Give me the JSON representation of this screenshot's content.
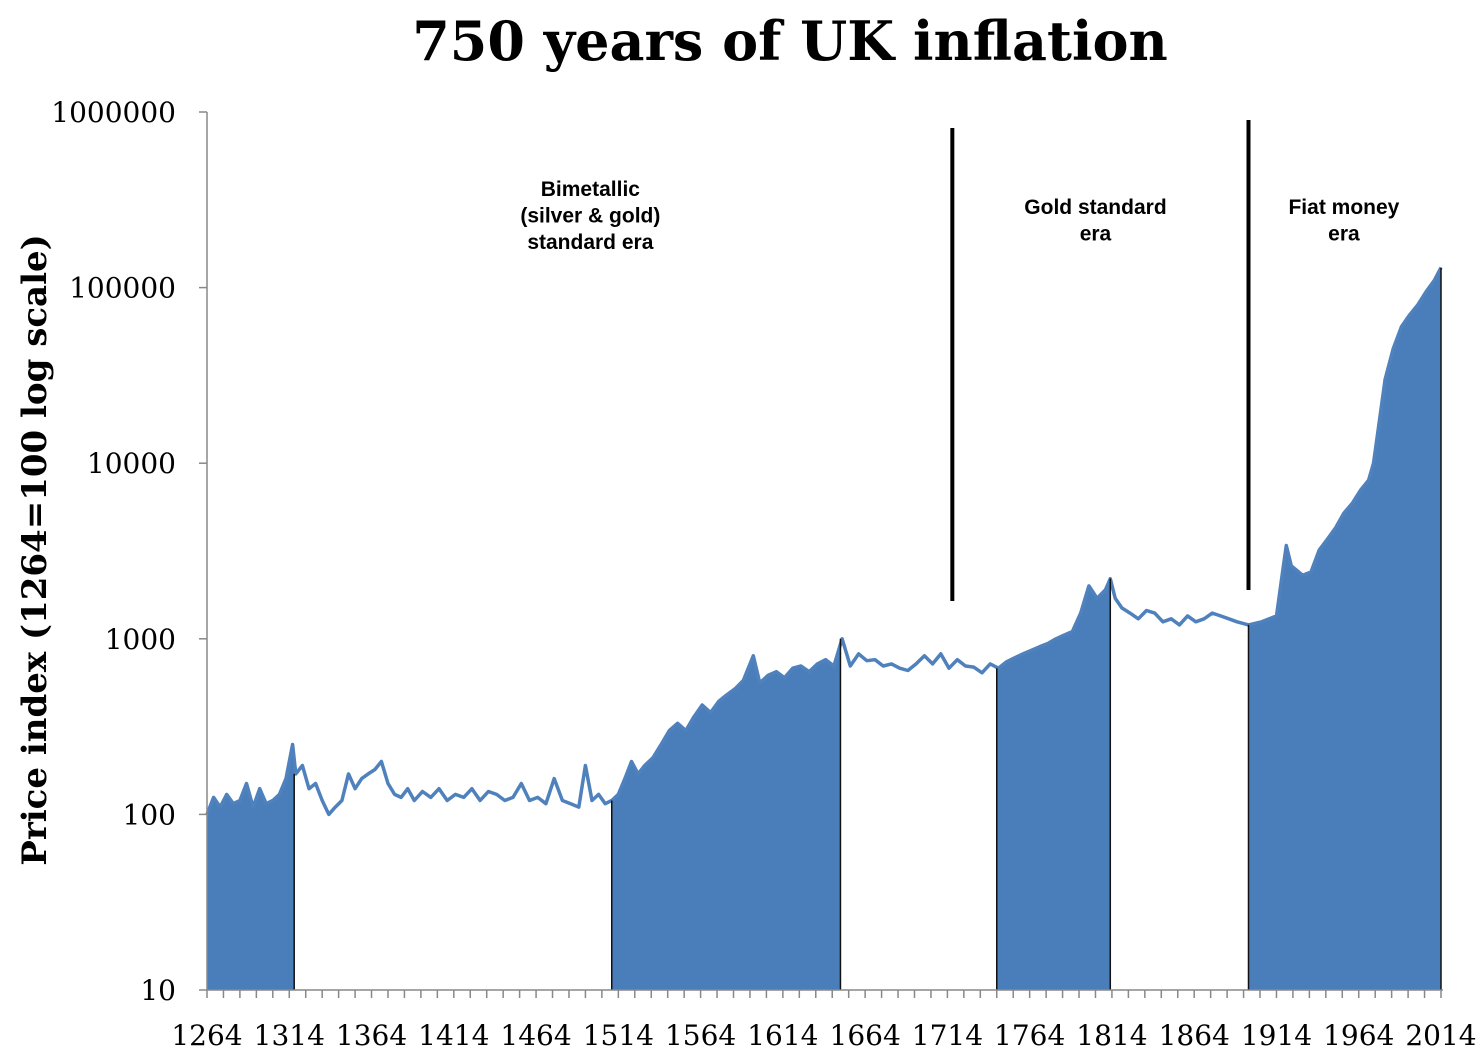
{
  "chart_data": {
    "type": "area",
    "title": "750 years of UK inflation",
    "xlabel": "",
    "ylabel": "Price index (1264=100 log scale)",
    "y_scale": "log",
    "ylim": [
      10,
      1000000
    ],
    "xlim": [
      1264,
      2014
    ],
    "yticks": [
      "10",
      "100",
      "1000",
      "10000",
      "100000",
      "1000000"
    ],
    "xticks": [
      "1264",
      "1314",
      "1364",
      "1414",
      "1464",
      "1514",
      "1564",
      "1614",
      "1664",
      "1714",
      "1764",
      "1814",
      "1864",
      "1914",
      "1964",
      "2014"
    ],
    "grid": false,
    "fill_color": "#4a7ebb",
    "line_color": "#4f81bd",
    "shaded_ranges": [
      [
        1264,
        1317
      ],
      [
        1510,
        1649
      ],
      [
        1744,
        1813
      ],
      [
        1897,
        2014
      ]
    ],
    "era_dividers": [
      1717,
      1897
    ],
    "annotations": [
      {
        "lines": [
          "Bimetallic",
          "(silver & gold)",
          "standard era"
        ],
        "year": 1497
      },
      {
        "lines": [
          "Gold standard",
          "era"
        ],
        "year": 1804
      },
      {
        "lines": [
          "Fiat money",
          "era"
        ],
        "year": 1955
      }
    ],
    "series": [
      {
        "x": [
          1264,
          1268,
          1272,
          1276,
          1280,
          1284,
          1288,
          1292,
          1296,
          1300,
          1304,
          1308,
          1312,
          1316,
          1318,
          1322,
          1326,
          1330,
          1334,
          1338,
          1342,
          1346,
          1350,
          1354,
          1358,
          1362,
          1366,
          1370,
          1374,
          1378,
          1382,
          1386,
          1390,
          1395,
          1400,
          1405,
          1410,
          1415,
          1420,
          1425,
          1430,
          1435,
          1440,
          1445,
          1450,
          1455,
          1460,
          1465,
          1470,
          1475,
          1480,
          1485,
          1490,
          1494,
          1498,
          1502,
          1506,
          1510,
          1514,
          1518,
          1522,
          1526,
          1530,
          1535,
          1540,
          1545,
          1550,
          1555,
          1560,
          1565,
          1570,
          1575,
          1580,
          1585,
          1590,
          1596,
          1600,
          1605,
          1610,
          1615,
          1620,
          1625,
          1630,
          1635,
          1640,
          1645,
          1650,
          1655,
          1660,
          1665,
          1670,
          1675,
          1680,
          1685,
          1690,
          1695,
          1700,
          1705,
          1710,
          1715,
          1720,
          1725,
          1730,
          1735,
          1740,
          1745,
          1750,
          1755,
          1760,
          1765,
          1770,
          1775,
          1780,
          1785,
          1790,
          1795,
          1800,
          1805,
          1810,
          1813,
          1816,
          1820,
          1825,
          1830,
          1835,
          1840,
          1845,
          1850,
          1855,
          1860,
          1865,
          1870,
          1875,
          1880,
          1885,
          1890,
          1897,
          1905,
          1914,
          1918,
          1920,
          1923,
          1930,
          1935,
          1940,
          1945,
          1950,
          1955,
          1960,
          1965,
          1970,
          1973,
          1976,
          1980,
          1985,
          1990,
          1995,
          2000,
          2005,
          2010,
          2014
        ],
        "y": [
          100,
          125,
          110,
          130,
          115,
          120,
          150,
          110,
          140,
          115,
          120,
          130,
          160,
          250,
          170,
          190,
          140,
          150,
          120,
          100,
          110,
          120,
          170,
          140,
          160,
          170,
          180,
          200,
          150,
          130,
          125,
          140,
          120,
          135,
          125,
          140,
          120,
          130,
          125,
          140,
          120,
          135,
          130,
          120,
          125,
          150,
          120,
          125,
          115,
          160,
          120,
          115,
          110,
          190,
          120,
          130,
          115,
          120,
          130,
          160,
          200,
          170,
          190,
          210,
          250,
          300,
          330,
          300,
          360,
          420,
          380,
          440,
          480,
          520,
          580,
          800,
          560,
          620,
          650,
          600,
          680,
          700,
          650,
          720,
          760,
          700,
          1000,
          700,
          820,
          750,
          760,
          700,
          720,
          680,
          660,
          720,
          800,
          720,
          820,
          680,
          760,
          700,
          690,
          640,
          720,
          680,
          740,
          780,
          820,
          860,
          900,
          940,
          1000,
          1050,
          1100,
          1400,
          2000,
          1700,
          1900,
          2200,
          1700,
          1500,
          1400,
          1300,
          1450,
          1400,
          1250,
          1300,
          1200,
          1350,
          1250,
          1300,
          1400,
          1350,
          1300,
          1250,
          1200,
          1250,
          1350,
          2500,
          3400,
          2600,
          2300,
          2400,
          3200,
          3700,
          4300,
          5200,
          5900,
          7000,
          8000,
          10000,
          16000,
          30000,
          45000,
          60000,
          70000,
          80000,
          95000,
          110000,
          130000
        ]
      }
    ]
  }
}
